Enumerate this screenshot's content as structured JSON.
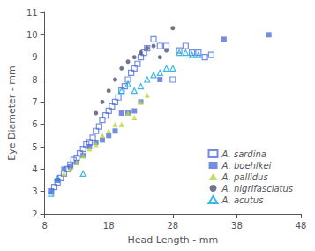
{
  "chart_data": {
    "type": "scatter",
    "xlabel": "Head Length - mm",
    "ylabel": "Eye Diameter - mm",
    "xlim": [
      8,
      48
    ],
    "ylim": [
      2,
      11
    ],
    "xticks": [
      8,
      18,
      28,
      38,
      48
    ],
    "yticks": [
      2,
      3,
      4,
      5,
      6,
      7,
      8,
      9,
      10,
      11
    ],
    "grid": false,
    "legend": "lower right",
    "series": [
      {
        "name": "A. sardina",
        "marker": "square-open",
        "x": [
          9.0,
          9.5,
          10.0,
          10.5,
          11.0,
          11.5,
          12.0,
          12.5,
          13.0,
          13.5,
          14.0,
          14.5,
          15.0,
          15.5,
          16.0,
          16.5,
          17.0,
          17.5,
          18.0,
          18.5,
          19.0,
          19.5,
          20.0,
          20.5,
          21.0,
          21.5,
          22.0,
          22.5,
          23.0,
          23.5,
          24.0,
          25.0,
          26.0,
          27.0,
          28.0,
          29.0,
          30.0,
          31.0,
          32.0,
          33.0,
          34.0
        ],
        "values": [
          3.0,
          3.2,
          3.4,
          3.6,
          3.8,
          4.0,
          4.2,
          4.4,
          4.5,
          4.7,
          4.9,
          5.1,
          5.2,
          5.4,
          5.7,
          5.9,
          6.2,
          6.4,
          6.6,
          6.8,
          7.0,
          7.2,
          7.5,
          7.7,
          8.0,
          8.3,
          8.5,
          8.7,
          9.0,
          9.2,
          9.4,
          9.8,
          9.5,
          9.5,
          8.0,
          9.3,
          9.5,
          9.2,
          9.2,
          9.0,
          9.1
        ]
      },
      {
        "name": "A. boehlkei",
        "marker": "square",
        "x": [
          9.0,
          10.0,
          11.0,
          12.0,
          13.0,
          14.0,
          15.0,
          16.0,
          17.0,
          18.0,
          19.0,
          20.0,
          21.0,
          22.0,
          23.0,
          26.0,
          36.0,
          43.0
        ],
        "values": [
          3.0,
          3.5,
          4.0,
          4.1,
          4.3,
          4.6,
          5.0,
          5.2,
          5.3,
          5.5,
          5.7,
          6.5,
          6.5,
          6.6,
          7.0,
          8.0,
          9.8,
          10.0
        ]
      },
      {
        "name": "A. pallidus",
        "marker": "triangle",
        "x": [
          11.0,
          12.0,
          13.0,
          14.0,
          15.0,
          16.0,
          17.0,
          18.0,
          19.0,
          20.0,
          21.0,
          22.0,
          23.0,
          24.0
        ],
        "values": [
          3.8,
          4.0,
          4.3,
          4.6,
          4.9,
          5.1,
          5.5,
          5.7,
          6.0,
          6.0,
          6.5,
          6.3,
          7.0,
          7.3
        ]
      },
      {
        "name": "A. nigrifasciatus",
        "marker": "circle",
        "x": [
          16.0,
          17.0,
          18.0,
          19.0,
          20.0,
          21.0,
          22.0,
          23.0,
          24.0,
          25.0,
          26.0,
          27.0,
          28.0
        ],
        "values": [
          6.5,
          7.0,
          7.5,
          8.0,
          8.5,
          8.8,
          9.0,
          9.2,
          9.4,
          9.5,
          9.0,
          9.3,
          10.3
        ]
      },
      {
        "name": "A. acutus",
        "marker": "triangle-open",
        "x": [
          9.0,
          10.0,
          14.0,
          20.0,
          21.0,
          22.0,
          23.0,
          24.0,
          25.0,
          26.0,
          27.0,
          28.0,
          29.0,
          30.0,
          31.0,
          32.0
        ],
        "values": [
          2.9,
          3.6,
          3.8,
          7.5,
          7.8,
          7.5,
          7.7,
          8.0,
          8.2,
          8.3,
          8.5,
          8.5,
          9.2,
          9.2,
          9.1,
          9.1
        ]
      }
    ]
  }
}
